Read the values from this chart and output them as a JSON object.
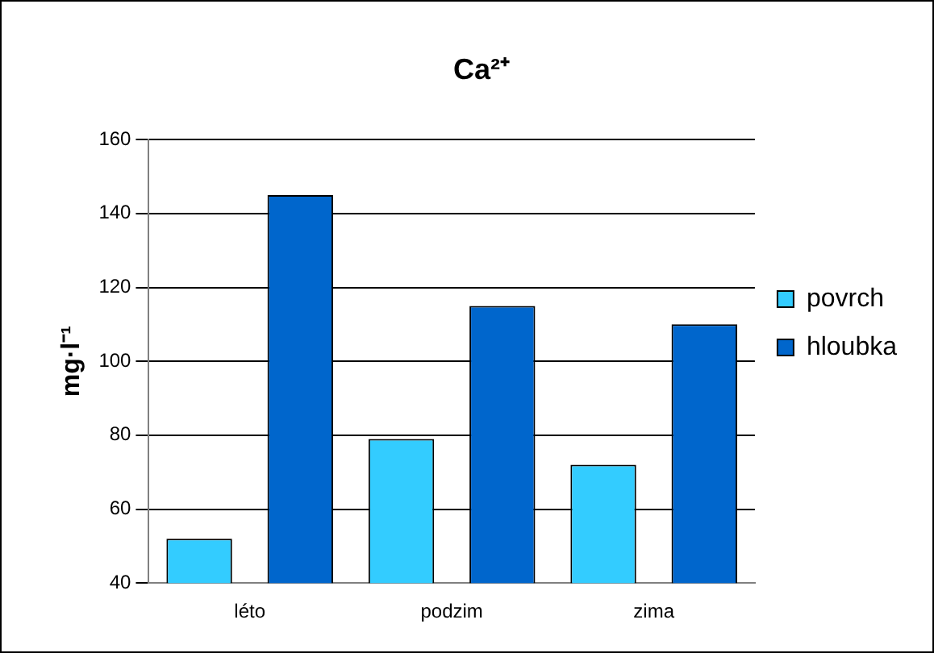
{
  "chart_data": {
    "type": "bar",
    "title": "Ca²⁺",
    "ylabel": "mg·l⁻¹",
    "categories": [
      "léto",
      "podzim",
      "zima"
    ],
    "series": [
      {
        "name": "povrch",
        "color": "#33ccff",
        "values": [
          52,
          79,
          72
        ]
      },
      {
        "name": "hloubka",
        "color": "#0066cc",
        "values": [
          145,
          115,
          110
        ]
      }
    ],
    "ylim": [
      40,
      160
    ],
    "yticks": [
      40,
      60,
      80,
      100,
      120,
      140,
      160
    ],
    "grid": "y",
    "legend": "right"
  }
}
